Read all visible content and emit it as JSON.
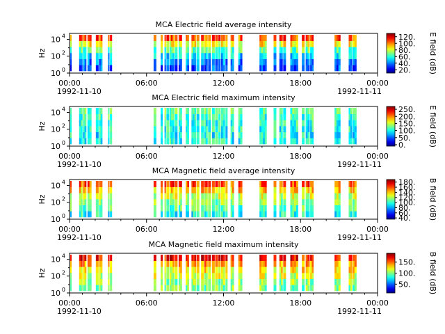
{
  "chart_data": [
    {
      "type": "heatmap",
      "title": "MCA  Electric field average intensity",
      "ylabel": "Hz",
      "cbar_label": "E field (dB)",
      "cbar_ticks": [
        "20.",
        "40.",
        "60.",
        "80.",
        "100.",
        "120."
      ],
      "cbar_range": [
        10,
        130
      ],
      "y_ticks": [
        {
          "base": "10",
          "exp": "0"
        },
        {
          "base": "10",
          "exp": "2"
        },
        {
          "base": "10",
          "exp": "4"
        }
      ],
      "x_ticks": [
        "00:00",
        "06:00",
        "12:00",
        "18:00",
        "00:00"
      ],
      "x_dates": [
        "1992-11-10",
        "1992-11-11"
      ],
      "profile": [
        105,
        85,
        65,
        50,
        40,
        35
      ]
    },
    {
      "type": "heatmap",
      "title": "MCA  Electric field maximum intensity",
      "ylabel": "Hz",
      "cbar_label": "E field (dB)",
      "cbar_ticks": [
        "0.",
        "50.",
        "100.",
        "150.",
        "200.",
        "250."
      ],
      "cbar_range": [
        -10,
        270
      ],
      "y_ticks": [
        {
          "base": "10",
          "exp": "0"
        },
        {
          "base": "10",
          "exp": "2"
        },
        {
          "base": "10",
          "exp": "4"
        }
      ],
      "x_ticks": [
        "00:00",
        "06:00",
        "12:00",
        "18:00",
        "00:00"
      ],
      "x_dates": [
        "1992-11-10",
        "1992-11-11"
      ],
      "profile": [
        120,
        110,
        105,
        100,
        95,
        100
      ]
    },
    {
      "type": "heatmap",
      "title": "MCA  Magnetic field average intensity",
      "ylabel": "Hz",
      "cbar_label": "B field (dB)",
      "cbar_ticks": [
        "40.",
        "60.",
        "80.",
        "100.",
        "120.",
        "140.",
        "160.",
        "180."
      ],
      "cbar_range": [
        35,
        190
      ],
      "y_ticks": [
        {
          "base": "10",
          "exp": "0"
        },
        {
          "base": "10",
          "exp": "2"
        },
        {
          "base": "10",
          "exp": "4"
        }
      ],
      "x_ticks": [
        "00:00",
        "06:00",
        "12:00",
        "18:00",
        "00:00"
      ],
      "x_dates": [
        "1992-11-10",
        "1992-11-11"
      ],
      "profile": [
        160,
        140,
        125,
        115,
        105,
        95
      ]
    },
    {
      "type": "heatmap",
      "title": "MCA  Magnetic field maximum intensity",
      "ylabel": "Hz",
      "cbar_label": "B field (dB)",
      "cbar_ticks": [
        "50.",
        "100.",
        "150."
      ],
      "cbar_range": [
        10,
        190
      ],
      "y_ticks": [
        {
          "base": "10",
          "exp": "0"
        },
        {
          "base": "10",
          "exp": "2"
        },
        {
          "base": "10",
          "exp": "4"
        }
      ],
      "x_ticks": [
        "00:00",
        "06:00",
        "12:00",
        "18:00",
        "00:00"
      ],
      "x_dates": [
        "1992-11-10",
        "1992-11-11"
      ],
      "profile": [
        165,
        140,
        125,
        115,
        105,
        100
      ]
    }
  ],
  "time_blocks_hours": [
    [
      0.05,
      0.15
    ],
    [
      0.75,
      1.0
    ],
    [
      1.05,
      1.3
    ],
    [
      1.4,
      1.7
    ],
    [
      2.05,
      2.25
    ],
    [
      2.3,
      2.55
    ],
    [
      3.0,
      3.1
    ],
    [
      3.15,
      3.3
    ],
    [
      6.55,
      6.75
    ],
    [
      7.1,
      7.25
    ],
    [
      7.4,
      7.5
    ],
    [
      7.55,
      7.75
    ],
    [
      7.8,
      8.15
    ],
    [
      8.2,
      8.4
    ],
    [
      8.5,
      8.75
    ],
    [
      9.05,
      9.3
    ],
    [
      9.5,
      9.85
    ],
    [
      9.9,
      10.1
    ],
    [
      10.25,
      10.45
    ],
    [
      10.5,
      10.75
    ],
    [
      10.8,
      11.0
    ],
    [
      11.1,
      11.3
    ],
    [
      11.35,
      11.55
    ],
    [
      11.6,
      11.75
    ],
    [
      11.8,
      12.1
    ],
    [
      12.15,
      12.3
    ],
    [
      12.55,
      12.8
    ],
    [
      13.15,
      13.45
    ],
    [
      14.8,
      15.35
    ],
    [
      15.9,
      16.1
    ],
    [
      16.35,
      16.6
    ],
    [
      16.65,
      16.85
    ],
    [
      17.2,
      17.8
    ],
    [
      18.1,
      18.3
    ],
    [
      18.4,
      18.7
    ],
    [
      18.75,
      19.0
    ],
    [
      20.65,
      21.1
    ],
    [
      21.75,
      22.0
    ],
    [
      22.05,
      22.35
    ]
  ]
}
